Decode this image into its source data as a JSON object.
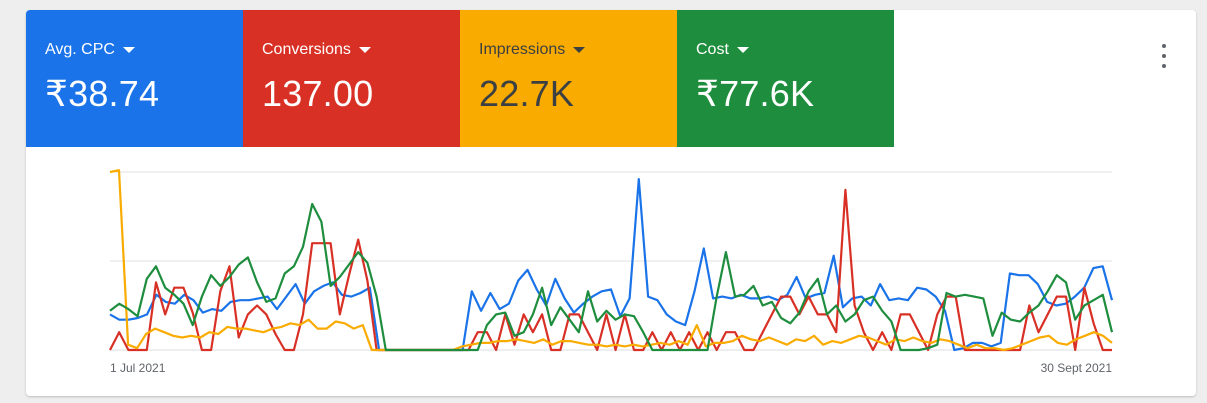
{
  "metrics": [
    {
      "label": "Avg. CPC",
      "value": "₹38.74",
      "color": "#1a73e8",
      "text_color": "#ffffff"
    },
    {
      "label": "Conversions",
      "value": "137.00",
      "color": "#d93025",
      "text_color": "#ffffff"
    },
    {
      "label": "Impressions",
      "value": "22.7K",
      "color": "#f9ab00",
      "text_color": "#3c4043"
    },
    {
      "label": "Cost",
      "value": "₹77.6K",
      "color": "#1e8e3e",
      "text_color": "#ffffff"
    }
  ],
  "menu_icon": "more-vert-icon",
  "chart_data": {
    "type": "line",
    "x_start_label": "1 Jul 2021",
    "x_end_label": "30 Sept 2021",
    "y_max": 100,
    "grid": true,
    "series": [
      {
        "metric": "Avg. CPC",
        "color": "#1a73e8",
        "values": [
          20,
          17,
          17,
          18,
          20,
          31,
          27,
          26,
          31,
          28,
          21,
          23,
          22,
          27,
          28,
          28,
          29,
          30,
          23,
          30,
          37,
          26,
          33,
          36,
          38,
          31,
          30,
          32,
          35,
          0,
          0,
          0,
          0,
          0,
          0,
          0,
          0,
          0,
          0,
          33,
          22,
          32,
          23,
          26,
          39,
          45,
          34,
          25,
          40,
          29,
          21,
          26,
          30,
          33,
          34,
          19,
          29,
          96,
          30,
          28,
          20,
          16,
          14,
          33,
          57,
          29,
          30,
          29,
          31,
          29,
          29,
          30,
          28,
          31,
          41,
          29,
          31,
          32,
          53,
          24,
          29,
          30,
          25,
          37,
          28,
          29,
          28,
          35,
          34,
          30,
          22,
          0,
          1,
          4,
          4,
          2,
          4,
          43,
          42,
          42,
          37,
          27,
          25,
          26,
          30,
          35,
          46,
          47,
          28
        ]
      },
      {
        "metric": "Conversions",
        "color": "#d93025",
        "values": [
          0,
          10,
          0,
          0,
          0,
          38,
          20,
          35,
          35,
          21,
          0,
          0,
          33,
          47,
          7,
          20,
          25,
          20,
          9,
          0,
          0,
          20,
          60,
          60,
          60,
          20,
          42,
          62,
          39,
          0,
          0,
          0,
          0,
          0,
          0,
          0,
          0,
          0,
          0,
          0,
          10,
          10,
          0,
          20,
          3,
          20,
          10,
          20,
          0,
          0,
          20,
          20,
          10,
          0,
          20,
          0,
          20,
          0,
          0,
          10,
          0,
          10,
          0,
          10,
          0,
          10,
          0,
          10,
          10,
          0,
          0,
          10,
          20,
          30,
          30,
          20,
          30,
          20,
          20,
          10,
          90,
          25,
          10,
          0,
          10,
          0,
          20,
          20,
          10,
          0,
          20,
          30,
          30,
          0,
          0,
          0,
          0,
          0,
          0,
          0,
          25,
          10,
          20,
          30,
          30,
          0,
          35,
          15,
          0,
          0
        ]
      },
      {
        "metric": "Impressions",
        "color": "#f9ab00",
        "values": [
          100,
          101,
          3,
          1,
          9,
          12,
          10,
          8,
          7,
          8,
          7,
          10,
          9,
          13,
          12,
          12,
          11,
          10,
          12,
          13,
          15,
          14,
          17,
          12,
          12,
          16,
          15,
          12,
          14,
          0,
          0,
          0,
          0,
          0,
          0,
          0,
          0,
          0,
          0,
          2,
          3,
          4,
          4,
          5,
          5,
          6,
          5,
          4,
          6,
          3,
          5,
          5,
          4,
          3,
          3,
          2,
          3,
          2,
          3,
          2,
          3,
          4,
          3,
          5,
          3,
          14,
          2,
          4,
          4,
          5,
          8,
          6,
          5,
          7,
          5,
          3,
          6,
          5,
          8,
          3,
          5,
          4,
          6,
          8,
          7,
          5,
          3,
          6,
          5,
          7,
          5,
          4,
          6,
          5,
          3,
          1,
          3,
          1,
          1,
          0,
          1,
          3,
          5,
          7,
          8,
          4,
          3,
          6,
          8,
          10,
          8,
          4
        ]
      },
      {
        "metric": "Cost",
        "color": "#1e8e3e",
        "values": [
          22,
          26,
          23,
          19,
          40,
          47,
          35,
          31,
          26,
          14,
          30,
          42,
          36,
          41,
          48,
          52,
          38,
          27,
          29,
          43,
          47,
          58,
          82,
          72,
          36,
          41,
          48,
          55,
          49,
          30,
          0,
          0,
          0,
          0,
          0,
          0,
          0,
          0,
          0,
          0,
          0,
          14,
          20,
          21,
          8,
          10,
          20,
          35,
          14,
          24,
          17,
          10,
          33,
          16,
          22,
          17,
          20,
          19,
          10,
          0,
          0,
          0,
          0,
          0,
          0,
          0,
          30,
          55,
          30,
          31,
          36,
          25,
          27,
          18,
          15,
          21,
          33,
          40,
          20,
          25,
          16,
          20,
          28,
          30,
          22,
          16,
          0,
          0,
          0,
          1,
          3,
          32,
          30,
          31,
          30,
          29,
          8,
          21,
          17,
          16,
          21,
          25,
          33,
          42,
          38,
          17,
          25,
          28,
          31,
          10
        ]
      }
    ]
  }
}
